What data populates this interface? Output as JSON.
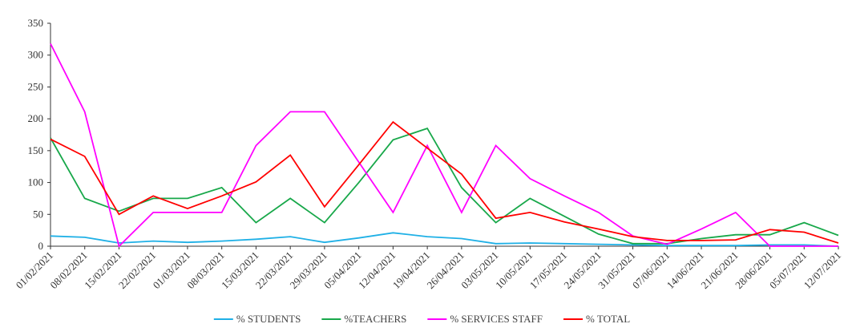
{
  "chart_data": {
    "type": "line",
    "title": "",
    "xlabel": "",
    "ylabel": "",
    "ylim": [
      0,
      350
    ],
    "yticks": [
      "0",
      "50",
      "100",
      "150",
      "200",
      "250",
      "300",
      "350"
    ],
    "grid": false,
    "legend_position": "bottom",
    "categories": [
      "01/02/2021",
      "08/02/2021",
      "15/02/2021",
      "22/02/2021",
      "01/03/2021",
      "08/03/2021",
      "15/03/2021",
      "22/03/2021",
      "29/03/2021",
      "05/04/2021",
      "12/04/2021",
      "19/04/2021",
      "26/04/2021",
      "03/05/2021",
      "10/05/2021",
      "17/05/2021",
      "24/05/2021",
      "31/05/2021",
      "07/06/2021",
      "14/06/2021",
      "21/06/2021",
      "28/06/2021",
      "05/07/2021",
      "12/07/2021"
    ],
    "series": [
      {
        "name": "% STUDENTS",
        "color": "#1fb0e6",
        "values": [
          16,
          14,
          5,
          8,
          6,
          8,
          11,
          15,
          6,
          13,
          21,
          15,
          12,
          4,
          5,
          4,
          3,
          2,
          1,
          1,
          1,
          2,
          2,
          0
        ]
      },
      {
        "name": "%TEACHERS",
        "color": "#18a84a",
        "values": [
          170,
          75,
          55,
          75,
          75,
          92,
          37,
          75,
          37,
          100,
          167,
          185,
          92,
          37,
          75,
          47,
          19,
          4,
          4,
          12,
          18,
          18,
          37,
          17
        ]
      },
      {
        "name": "% SERVICES STAFF",
        "color": "#ff00ff",
        "values": [
          318,
          211,
          0,
          53,
          53,
          53,
          158,
          211,
          211,
          132,
          53,
          158,
          53,
          158,
          106,
          79,
          53,
          16,
          3,
          27,
          53,
          0,
          0,
          0
        ]
      },
      {
        "name": "% TOTAL",
        "color": "#ff0000",
        "values": [
          168,
          141,
          50,
          79,
          59,
          79,
          101,
          143,
          62,
          128,
          195,
          154,
          113,
          44,
          53,
          38,
          27,
          15,
          9,
          9,
          10,
          26,
          22,
          5
        ]
      }
    ]
  }
}
